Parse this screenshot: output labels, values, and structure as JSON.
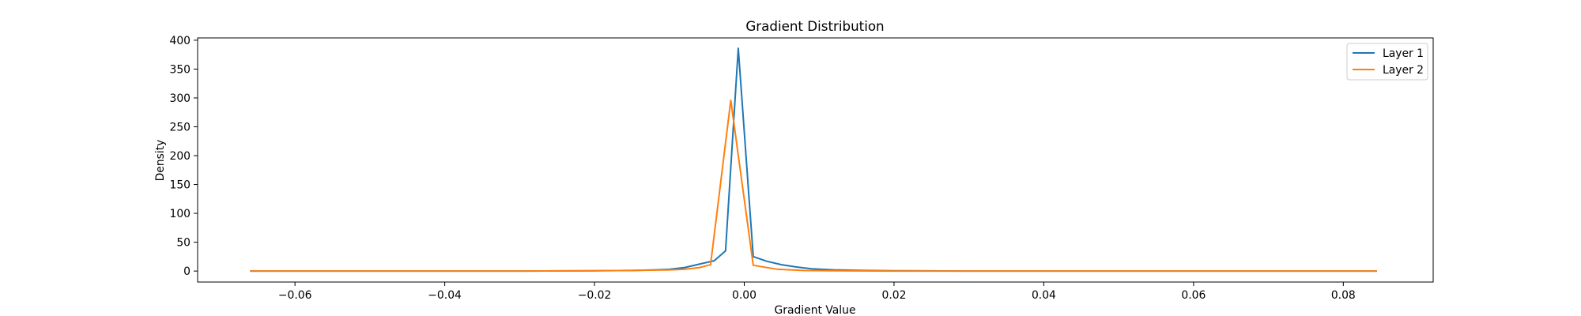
{
  "chart_data": {
    "type": "line",
    "title": "Gradient Distribution",
    "xlabel": "Gradient Value",
    "ylabel": "Density",
    "xlim": [
      -0.073,
      0.092
    ],
    "ylim": [
      -19,
      404
    ],
    "xticks": [
      -0.06,
      -0.04,
      -0.02,
      0.0,
      0.02,
      0.04,
      0.06,
      0.08
    ],
    "xtick_labels": [
      "−0.06",
      "−0.04",
      "−0.02",
      "0.00",
      "0.02",
      "0.04",
      "0.06",
      "0.08"
    ],
    "yticks": [
      0,
      50,
      100,
      150,
      200,
      250,
      300,
      350,
      400
    ],
    "ytick_labels": [
      "0",
      "50",
      "100",
      "150",
      "200",
      "250",
      "300",
      "350",
      "400"
    ],
    "grid": false,
    "legend_position": "upper right",
    "series": [
      {
        "name": "Layer 1",
        "color": "#1f77b4",
        "x": [
          -0.066,
          -0.05,
          -0.04,
          -0.03,
          -0.02,
          -0.015,
          -0.012,
          -0.01,
          -0.008,
          -0.006,
          -0.004,
          -0.0025,
          -0.0008,
          0.0012,
          0.003,
          0.005,
          0.007,
          0.009,
          0.012,
          0.016,
          0.02,
          0.03,
          0.05,
          0.07,
          0.0845
        ],
        "y": [
          0,
          0,
          0,
          0,
          0.5,
          1,
          2,
          3,
          6,
          12,
          18,
          35,
          386,
          25,
          17,
          11,
          7,
          4,
          2,
          1,
          0.5,
          0,
          0,
          0,
          0
        ]
      },
      {
        "name": "Layer 2",
        "color": "#ff7f0e",
        "x": [
          -0.066,
          -0.05,
          -0.04,
          -0.03,
          -0.02,
          -0.015,
          -0.01,
          -0.008,
          -0.006,
          -0.0045,
          -0.0018,
          0.0012,
          0.0045,
          0.008,
          0.012,
          0.02,
          0.03,
          0.05,
          0.07,
          0.0845
        ],
        "y": [
          0,
          0,
          0,
          0,
          0.5,
          1,
          2,
          3,
          6,
          11,
          296,
          10,
          3,
          1,
          0.5,
          0,
          0,
          0,
          0,
          0
        ]
      }
    ]
  }
}
